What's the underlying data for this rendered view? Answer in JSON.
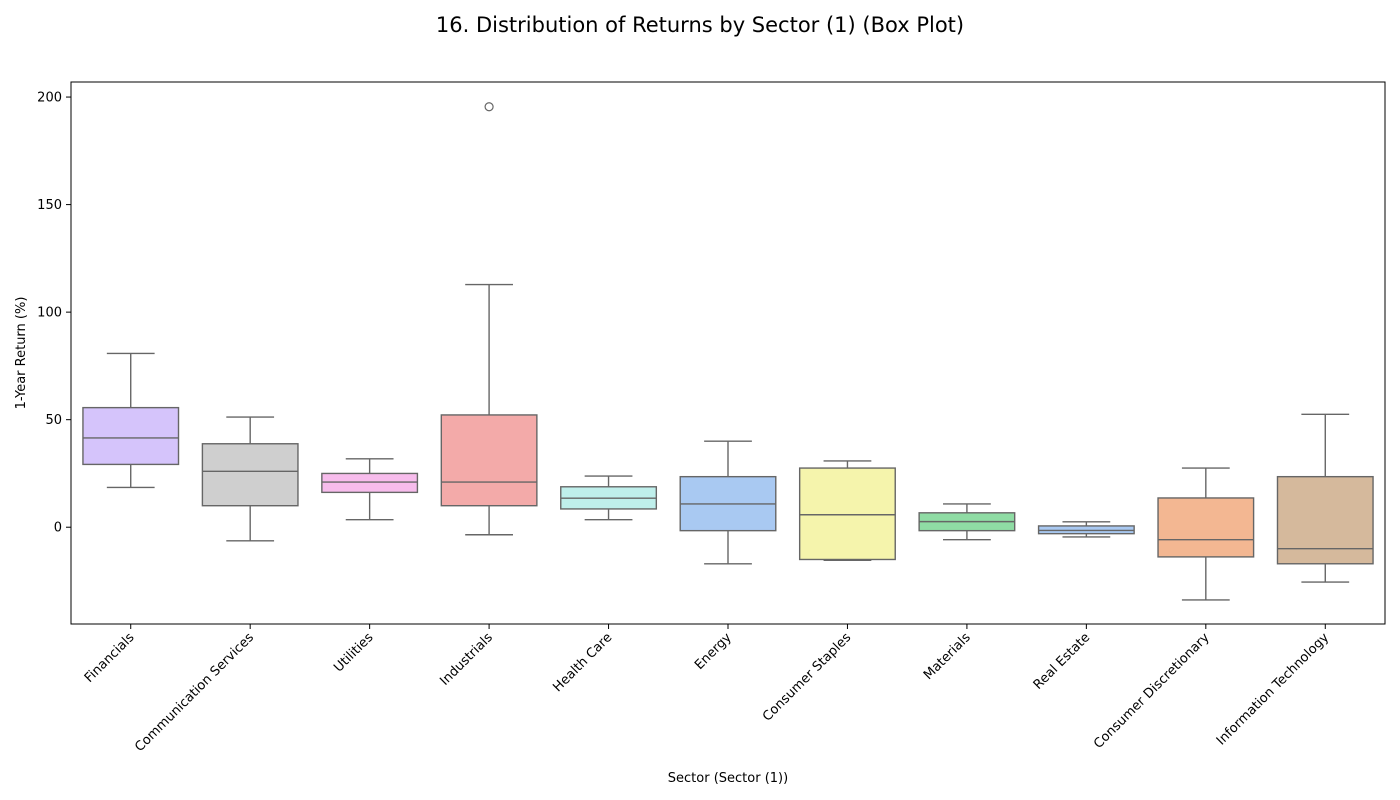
{
  "chart_data": {
    "type": "box",
    "title": "16. Distribution of Returns by Sector (1) (Box Plot)",
    "xlabel": "Sector (Sector (1))",
    "ylabel": "1-Year Return (%)",
    "ylim": [
      -45,
      207
    ],
    "yticks": [
      0,
      50,
      100,
      150,
      200
    ],
    "grid": false,
    "categories": [
      "Financials",
      "Communication Services",
      "Utilities",
      "Industrials",
      "Health Care",
      "Energy",
      "Consumer Staples",
      "Materials",
      "Real Estate",
      "Consumer Discretionary",
      "Information Technology"
    ],
    "boxes": [
      {
        "category": "Financials",
        "whisker_low": 18.5,
        "q1": 29.2,
        "median": 41.5,
        "q3": 55.6,
        "whisker_high": 80.8,
        "outliers": [],
        "color": "#d5c4fb"
      },
      {
        "category": "Communication Services",
        "whisker_low": -6.3,
        "q1": 10.0,
        "median": 26.0,
        "q3": 38.8,
        "whisker_high": 51.2,
        "outliers": [],
        "color": "#cfcfcf"
      },
      {
        "category": "Utilities",
        "whisker_low": 3.5,
        "q1": 16.2,
        "median": 21.0,
        "q3": 25.0,
        "whisker_high": 31.8,
        "outliers": [],
        "color": "#f7bcec"
      },
      {
        "category": "Industrials",
        "whisker_low": -3.5,
        "q1": 10.0,
        "median": 21.0,
        "q3": 52.2,
        "whisker_high": 112.8,
        "outliers": [
          195.5
        ],
        "color": "#f3aaa9"
      },
      {
        "category": "Health Care",
        "whisker_low": 3.5,
        "q1": 8.5,
        "median": 13.5,
        "q3": 18.8,
        "whisker_high": 23.8,
        "outliers": [],
        "color": "#bfefeb"
      },
      {
        "category": "Energy",
        "whisker_low": -17.0,
        "q1": -1.6,
        "median": 10.8,
        "q3": 23.5,
        "whisker_high": 40.0,
        "outliers": [],
        "color": "#a9c9f2"
      },
      {
        "category": "Consumer Staples",
        "whisker_low": -15.4,
        "q1": -15.0,
        "median": 5.8,
        "q3": 27.5,
        "whisker_high": 30.8,
        "outliers": [],
        "color": "#f5f4ac"
      },
      {
        "category": "Materials",
        "whisker_low": -5.8,
        "q1": -1.6,
        "median": 2.6,
        "q3": 6.7,
        "whisker_high": 10.8,
        "outliers": [],
        "color": "#8fdca4"
      },
      {
        "category": "Real Estate",
        "whisker_low": -4.5,
        "q1": -3.0,
        "median": -1.5,
        "q3": 0.6,
        "whisker_high": 2.5,
        "outliers": [],
        "color": "#a9c9f2"
      },
      {
        "category": "Consumer Discretionary",
        "whisker_low": -33.8,
        "q1": -13.8,
        "median": -5.8,
        "q3": 13.6,
        "whisker_high": 27.5,
        "outliers": [],
        "color": "#f3b792"
      },
      {
        "category": "Information Technology",
        "whisker_low": -25.5,
        "q1": -17.0,
        "median": -10.0,
        "q3": 23.5,
        "whisker_high": 52.5,
        "outliers": [],
        "color": "#d5b99c"
      }
    ]
  }
}
